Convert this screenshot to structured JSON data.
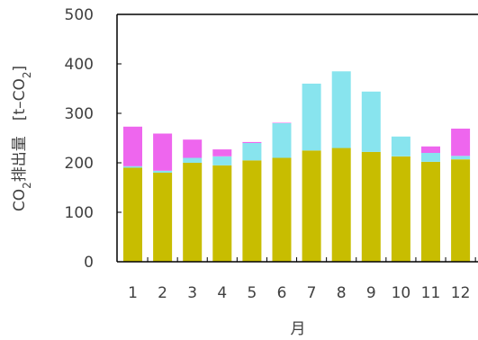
{
  "chart_data": {
    "type": "bar",
    "stacked": true,
    "categories": [
      "1",
      "2",
      "3",
      "4",
      "5",
      "6",
      "7",
      "8",
      "9",
      "10",
      "11",
      "12"
    ],
    "series": [
      {
        "values": [
          190,
          180,
          200,
          195,
          205,
          210,
          225,
          230,
          222,
          213,
          202,
          207
        ],
        "color": "#c8bd00"
      },
      {
        "values": [
          3,
          4,
          10,
          18,
          35,
          70,
          135,
          155,
          122,
          40,
          18,
          7
        ],
        "color": "#88e4ee"
      },
      {
        "values": [
          80,
          75,
          37,
          14,
          2,
          1,
          0,
          0,
          0,
          0,
          13,
          55
        ],
        "color": "#ee66ee"
      }
    ],
    "xlabel": "月",
    "ylabel": "CO₂排出量　[t–CO₂]",
    "ylabel_parts": {
      "co": "CO",
      "sub1": "2",
      "main": "排出量　[t–CO",
      "sub2": "2",
      "close": "]"
    },
    "ylim": [
      0,
      500
    ],
    "yticks": [
      0,
      100,
      200,
      300,
      400,
      500
    ],
    "grid": false,
    "legend": "none"
  }
}
